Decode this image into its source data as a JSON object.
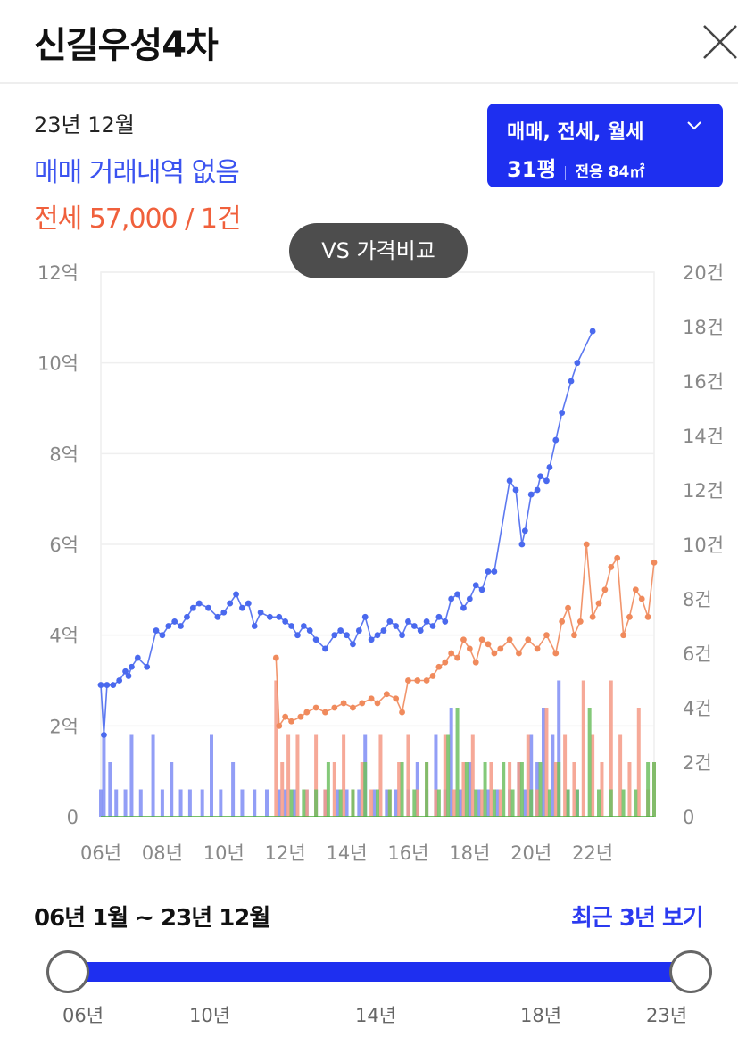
{
  "header": {
    "title": "신길우성4차"
  },
  "summary": {
    "date": "23년 12월",
    "sale_text": "매매 거래내역 없음",
    "jeonse_text": "전세 57,000 / 1건"
  },
  "filter": {
    "types": "매매, 전세, 월세",
    "pyeong": "31평",
    "area": "전용 84㎡"
  },
  "vs_button": "VS 가격비교",
  "chart_data": {
    "type": "line",
    "x_ticks": [
      "06년",
      "08년",
      "10년",
      "12년",
      "14년",
      "16년",
      "18년",
      "20년",
      "22년"
    ],
    "y_left_ticks": [
      "0",
      "2억",
      "4억",
      "6억",
      "8억",
      "10억",
      "12억"
    ],
    "y_right_ticks": [
      "0",
      "2건",
      "4건",
      "6건",
      "8건",
      "10건",
      "12건",
      "14건",
      "16건",
      "18건",
      "20건"
    ],
    "ylim_left": [
      0,
      12
    ],
    "ylim_right": [
      0,
      20
    ],
    "xlim": [
      2006.0,
      2024.0
    ],
    "grid": true,
    "series": [
      {
        "kind": "line",
        "color": "#4a69ee",
        "points": [
          [
            2006.0,
            2.9
          ],
          [
            2006.1,
            1.8
          ],
          [
            2006.2,
            2.9
          ],
          [
            2006.4,
            2.9
          ],
          [
            2006.6,
            3.0
          ],
          [
            2006.8,
            3.2
          ],
          [
            2006.9,
            3.1
          ],
          [
            2007.0,
            3.3
          ],
          [
            2007.2,
            3.5
          ],
          [
            2007.5,
            3.3
          ],
          [
            2007.8,
            4.1
          ],
          [
            2008.0,
            4.0
          ],
          [
            2008.2,
            4.2
          ],
          [
            2008.4,
            4.3
          ],
          [
            2008.6,
            4.2
          ],
          [
            2008.8,
            4.4
          ],
          [
            2009.0,
            4.6
          ],
          [
            2009.2,
            4.7
          ],
          [
            2009.5,
            4.6
          ],
          [
            2009.8,
            4.4
          ],
          [
            2010.0,
            4.5
          ],
          [
            2010.2,
            4.7
          ],
          [
            2010.4,
            4.9
          ],
          [
            2010.6,
            4.6
          ],
          [
            2010.8,
            4.7
          ],
          [
            2011.0,
            4.2
          ],
          [
            2011.2,
            4.5
          ],
          [
            2011.5,
            4.4
          ],
          [
            2011.8,
            4.4
          ],
          [
            2012.0,
            4.3
          ],
          [
            2012.2,
            4.2
          ],
          [
            2012.4,
            4.0
          ],
          [
            2012.6,
            4.2
          ],
          [
            2012.8,
            4.1
          ],
          [
            2013.0,
            3.9
          ],
          [
            2013.3,
            3.7
          ],
          [
            2013.6,
            4.0
          ],
          [
            2013.8,
            4.1
          ],
          [
            2014.0,
            4.0
          ],
          [
            2014.2,
            3.8
          ],
          [
            2014.4,
            4.1
          ],
          [
            2014.6,
            4.4
          ],
          [
            2014.8,
            3.9
          ],
          [
            2015.0,
            4.0
          ],
          [
            2015.2,
            4.1
          ],
          [
            2015.4,
            4.3
          ],
          [
            2015.6,
            4.2
          ],
          [
            2015.8,
            4.0
          ],
          [
            2016.0,
            4.3
          ],
          [
            2016.2,
            4.2
          ],
          [
            2016.4,
            4.1
          ],
          [
            2016.6,
            4.3
          ],
          [
            2016.8,
            4.2
          ],
          [
            2017.0,
            4.4
          ],
          [
            2017.2,
            4.3
          ],
          [
            2017.4,
            4.8
          ],
          [
            2017.6,
            4.9
          ],
          [
            2017.8,
            4.6
          ],
          [
            2018.0,
            4.8
          ],
          [
            2018.2,
            5.1
          ],
          [
            2018.4,
            5.0
          ],
          [
            2018.6,
            5.4
          ],
          [
            2018.8,
            5.4
          ],
          [
            2019.3,
            7.4
          ],
          [
            2019.5,
            7.2
          ],
          [
            2019.7,
            6.0
          ],
          [
            2019.8,
            6.3
          ],
          [
            2020.0,
            7.1
          ],
          [
            2020.2,
            7.2
          ],
          [
            2020.3,
            7.5
          ],
          [
            2020.5,
            7.4
          ],
          [
            2020.6,
            7.7
          ],
          [
            2020.8,
            8.3
          ],
          [
            2021.0,
            8.9
          ],
          [
            2021.3,
            9.6
          ],
          [
            2021.5,
            10.0
          ],
          [
            2022.0,
            10.7
          ]
        ]
      },
      {
        "kind": "line",
        "color": "#f08a5c",
        "points": [
          [
            2011.7,
            3.5
          ],
          [
            2011.8,
            2.0
          ],
          [
            2012.0,
            2.2
          ],
          [
            2012.2,
            2.1
          ],
          [
            2012.5,
            2.2
          ],
          [
            2012.7,
            2.3
          ],
          [
            2013.0,
            2.4
          ],
          [
            2013.3,
            2.3
          ],
          [
            2013.6,
            2.4
          ],
          [
            2013.9,
            2.5
          ],
          [
            2014.2,
            2.4
          ],
          [
            2014.5,
            2.5
          ],
          [
            2014.8,
            2.6
          ],
          [
            2015.0,
            2.5
          ],
          [
            2015.3,
            2.7
          ],
          [
            2015.6,
            2.6
          ],
          [
            2015.8,
            2.3
          ],
          [
            2016.0,
            3.0
          ],
          [
            2016.3,
            3.0
          ],
          [
            2016.6,
            3.0
          ],
          [
            2016.8,
            3.1
          ],
          [
            2017.0,
            3.3
          ],
          [
            2017.2,
            3.4
          ],
          [
            2017.4,
            3.6
          ],
          [
            2017.6,
            3.5
          ],
          [
            2017.8,
            3.9
          ],
          [
            2018.0,
            3.7
          ],
          [
            2018.2,
            3.4
          ],
          [
            2018.4,
            3.9
          ],
          [
            2018.6,
            3.8
          ],
          [
            2018.8,
            3.6
          ],
          [
            2019.0,
            3.7
          ],
          [
            2019.3,
            3.9
          ],
          [
            2019.6,
            3.6
          ],
          [
            2019.9,
            3.9
          ],
          [
            2020.2,
            3.7
          ],
          [
            2020.5,
            4.0
          ],
          [
            2020.8,
            3.6
          ],
          [
            2021.0,
            4.3
          ],
          [
            2021.2,
            4.6
          ],
          [
            2021.4,
            4.0
          ],
          [
            2021.6,
            4.3
          ],
          [
            2021.8,
            6.0
          ],
          [
            2022.0,
            4.4
          ],
          [
            2022.2,
            4.7
          ],
          [
            2022.4,
            5.0
          ],
          [
            2022.6,
            5.5
          ],
          [
            2022.8,
            5.7
          ],
          [
            2023.0,
            4.0
          ],
          [
            2023.2,
            4.4
          ],
          [
            2023.4,
            5.0
          ],
          [
            2023.6,
            4.8
          ],
          [
            2023.8,
            4.4
          ],
          [
            2024.0,
            5.6
          ]
        ]
      }
    ],
    "bars": [
      {
        "color": "#7f8df5",
        "points": [
          [
            2006.0,
            1
          ],
          [
            2006.1,
            3
          ],
          [
            2006.3,
            2
          ],
          [
            2006.5,
            1
          ],
          [
            2006.8,
            1
          ],
          [
            2007.0,
            3
          ],
          [
            2007.3,
            1
          ],
          [
            2007.7,
            3
          ],
          [
            2008.0,
            1
          ],
          [
            2008.3,
            2
          ],
          [
            2008.6,
            1
          ],
          [
            2008.9,
            1
          ],
          [
            2009.3,
            1
          ],
          [
            2009.6,
            3
          ],
          [
            2009.9,
            1
          ],
          [
            2010.3,
            2
          ],
          [
            2010.6,
            1
          ],
          [
            2011.0,
            1
          ],
          [
            2011.4,
            1
          ],
          [
            2011.8,
            1
          ],
          [
            2012.0,
            1
          ],
          [
            2012.3,
            1
          ],
          [
            2012.7,
            1
          ],
          [
            2013.0,
            1
          ],
          [
            2013.3,
            1
          ],
          [
            2013.7,
            1
          ],
          [
            2014.0,
            1
          ],
          [
            2014.4,
            1
          ],
          [
            2014.6,
            3
          ],
          [
            2014.9,
            1
          ],
          [
            2015.3,
            1
          ],
          [
            2015.6,
            1
          ],
          [
            2016.0,
            1
          ],
          [
            2016.3,
            2
          ],
          [
            2016.6,
            1
          ],
          [
            2016.9,
            3
          ],
          [
            2017.2,
            1
          ],
          [
            2017.4,
            4
          ],
          [
            2017.7,
            1
          ],
          [
            2018.0,
            2
          ],
          [
            2018.3,
            1
          ],
          [
            2018.6,
            1
          ],
          [
            2018.9,
            1
          ],
          [
            2019.3,
            1
          ],
          [
            2019.6,
            2
          ],
          [
            2019.8,
            1
          ],
          [
            2020.0,
            3
          ],
          [
            2020.2,
            2
          ],
          [
            2020.4,
            4
          ],
          [
            2020.7,
            3
          ],
          [
            2020.9,
            5
          ],
          [
            2021.2,
            1
          ],
          [
            2021.5,
            1
          ]
        ]
      },
      {
        "color": "#f49a86",
        "points": [
          [
            2011.7,
            5
          ],
          [
            2011.9,
            2
          ],
          [
            2012.1,
            3
          ],
          [
            2012.4,
            3
          ],
          [
            2012.7,
            1
          ],
          [
            2013.0,
            3
          ],
          [
            2013.3,
            1
          ],
          [
            2013.6,
            2
          ],
          [
            2013.9,
            3
          ],
          [
            2014.2,
            1
          ],
          [
            2014.5,
            2
          ],
          [
            2014.8,
            1
          ],
          [
            2015.1,
            3
          ],
          [
            2015.4,
            1
          ],
          [
            2015.7,
            2
          ],
          [
            2016.0,
            3
          ],
          [
            2016.3,
            1
          ],
          [
            2016.6,
            2
          ],
          [
            2016.9,
            1
          ],
          [
            2017.2,
            3
          ],
          [
            2017.5,
            1
          ],
          [
            2017.8,
            2
          ],
          [
            2018.1,
            3
          ],
          [
            2018.4,
            1
          ],
          [
            2018.7,
            2
          ],
          [
            2019.0,
            1
          ],
          [
            2019.3,
            2
          ],
          [
            2019.6,
            2
          ],
          [
            2019.9,
            3
          ],
          [
            2020.2,
            1
          ],
          [
            2020.5,
            4
          ],
          [
            2020.8,
            2
          ],
          [
            2021.1,
            3
          ],
          [
            2021.4,
            2
          ],
          [
            2021.7,
            5
          ],
          [
            2022.0,
            3
          ],
          [
            2022.3,
            2
          ],
          [
            2022.6,
            5
          ],
          [
            2022.9,
            3
          ],
          [
            2023.2,
            2
          ],
          [
            2023.5,
            4
          ],
          [
            2023.8,
            1
          ],
          [
            2024.0,
            2
          ]
        ]
      },
      {
        "color": "#6fc061",
        "points": [
          [
            2012.2,
            1
          ],
          [
            2012.6,
            1
          ],
          [
            2013.0,
            1
          ],
          [
            2013.4,
            2
          ],
          [
            2013.8,
            1
          ],
          [
            2014.2,
            1
          ],
          [
            2014.6,
            2
          ],
          [
            2015.0,
            1
          ],
          [
            2015.4,
            1
          ],
          [
            2015.8,
            2
          ],
          [
            2016.2,
            1
          ],
          [
            2016.6,
            2
          ],
          [
            2017.0,
            1
          ],
          [
            2017.3,
            3
          ],
          [
            2017.6,
            4
          ],
          [
            2017.9,
            2
          ],
          [
            2018.2,
            1
          ],
          [
            2018.5,
            2
          ],
          [
            2018.8,
            1
          ],
          [
            2019.1,
            2
          ],
          [
            2019.4,
            1
          ],
          [
            2019.7,
            2
          ],
          [
            2020.0,
            1
          ],
          [
            2020.3,
            2
          ],
          [
            2020.6,
            1
          ],
          [
            2020.9,
            2
          ],
          [
            2021.2,
            1
          ],
          [
            2021.5,
            1
          ],
          [
            2021.9,
            4
          ],
          [
            2022.2,
            1
          ],
          [
            2022.6,
            1
          ],
          [
            2023.0,
            1
          ],
          [
            2023.4,
            1
          ],
          [
            2023.8,
            2
          ],
          [
            2024.0,
            2
          ]
        ]
      }
    ]
  },
  "range": {
    "label": "06년 1월 ~ 23년 12월",
    "recent_link": "최근 3년 보기",
    "ticks": [
      "06년",
      "10년",
      "14년",
      "18년",
      "23년"
    ]
  }
}
